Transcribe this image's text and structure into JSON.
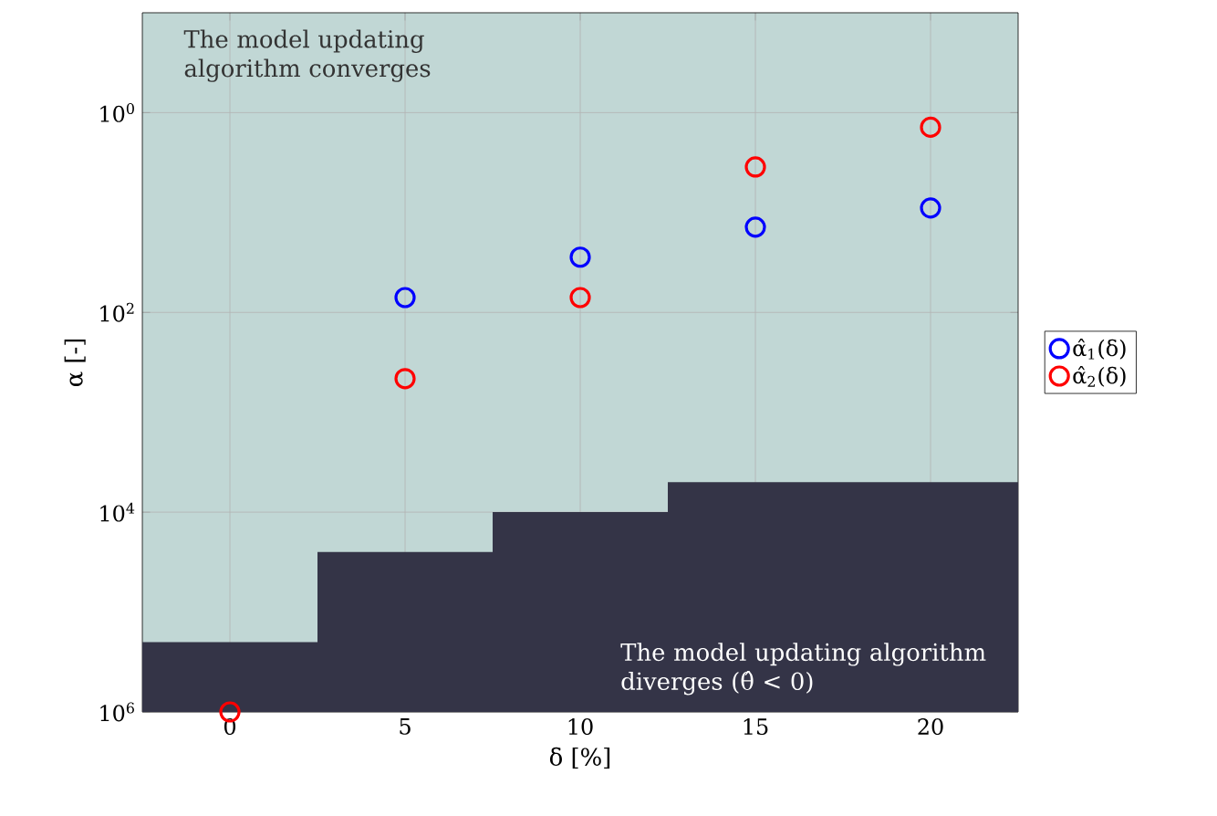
{
  "chart_data": {
    "type": "scatter",
    "xlabel": "δ [%]",
    "ylabel": "α [-]",
    "log": "y",
    "grid": true,
    "legend": "right",
    "marker": "circle",
    "xlim": [
      -2.5,
      22.5
    ],
    "xticks": [
      0,
      5,
      10,
      15,
      20
    ],
    "ylim": [
      1000000,
      0.1
    ],
    "yticks": [
      {
        "value": 1,
        "label": "10$^{0}$"
      },
      {
        "value": 100,
        "label": "10$^{2}$"
      },
      {
        "value": 10000,
        "label": "10$^{4}$"
      },
      {
        "value": 1000000,
        "label": "10$^{6}$"
      }
    ],
    "annotations": [
      "The model updating algorithm converges",
      "The model updating algorithm diverges (θ̂ < 0)"
    ],
    "series": [
      {
        "type": "area",
        "color": "#343447",
        "marker": "none",
        "x": [
          -2.5,
          -2.5,
          2.5,
          2.5,
          7.5,
          7.5,
          12.5,
          12.5,
          22.5,
          22.5
        ],
        "values": [
          1000000,
          200000,
          200000,
          25000,
          25000,
          10000,
          10000,
          5000,
          5000,
          1000000
        ]
      },
      {
        "name": "α̂$_{1}$(δ)",
        "color": "#0000ff",
        "x": [
          5,
          10,
          15,
          20
        ],
        "values": [
          71,
          28,
          14,
          9
        ]
      },
      {
        "name": "α̂$_{2}$(δ)",
        "color": "#ff0000",
        "x": [
          0,
          5,
          10,
          15,
          20
        ],
        "values": [
          1000000,
          460,
          71,
          3.5,
          1.4
        ]
      }
    ]
  }
}
